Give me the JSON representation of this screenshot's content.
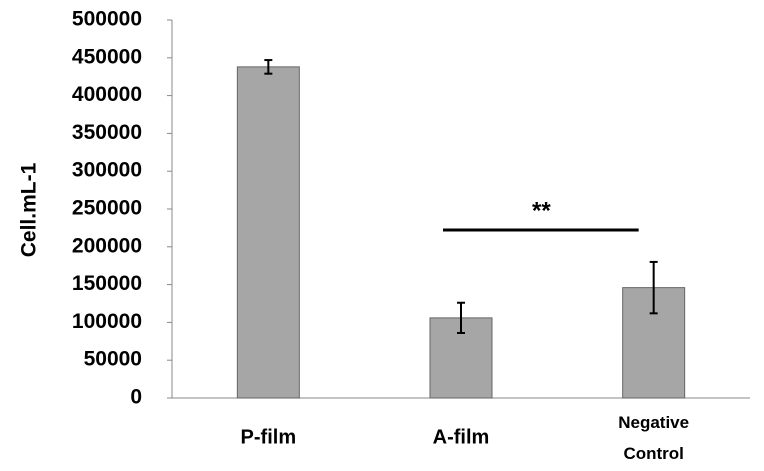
{
  "chart_data": {
    "type": "bar",
    "y_label": "Cell.mL-1",
    "categories": [
      "P-film",
      "A-film",
      "Negative Control"
    ],
    "values": [
      438000,
      106000,
      146000
    ],
    "errors": [
      9000,
      20000,
      34000
    ],
    "color": "#a6a6a6",
    "ylim": [
      0,
      500000
    ],
    "yticks": [
      0,
      50000,
      100000,
      150000,
      200000,
      250000,
      300000,
      350000,
      400000,
      450000,
      500000
    ],
    "annotation": "**"
  }
}
